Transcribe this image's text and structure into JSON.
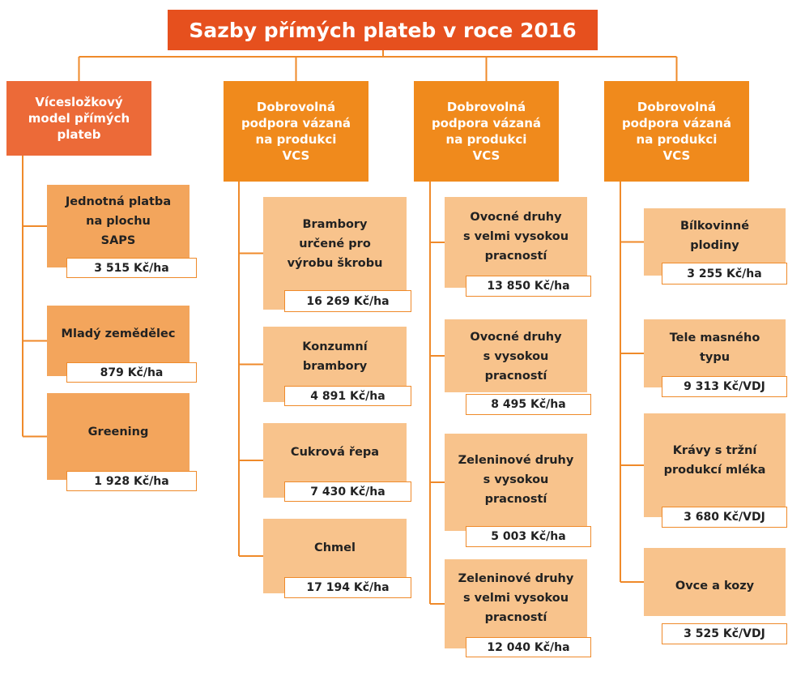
{
  "title": "Sazby přímých plateb v roce 2016",
  "columns": [
    {
      "header": [
        "Vícesložkový",
        "model přímých",
        "plateb"
      ],
      "items": [
        {
          "label": [
            "Jednotná platba",
            "na plochu",
            "SAPS"
          ],
          "value": "3 515 Kč/ha"
        },
        {
          "label": [
            "Mladý zemědělec"
          ],
          "value": "879 Kč/ha"
        },
        {
          "label": [
            "Greening"
          ],
          "value": "1 928 Kč/ha"
        }
      ]
    },
    {
      "header": [
        "Dobrovolná",
        "podpora vázaná",
        "na produkci",
        "VCS"
      ],
      "items": [
        {
          "label": [
            "Brambory",
            "určené pro",
            "výrobu škrobu"
          ],
          "value": "16 269 Kč/ha"
        },
        {
          "label": [
            "Konzumní",
            "brambory"
          ],
          "value": "4 891 Kč/ha"
        },
        {
          "label": [
            "Cukrová řepa"
          ],
          "value": "7 430 Kč/ha"
        },
        {
          "label": [
            "Chmel"
          ],
          "value": "17 194 Kč/ha"
        }
      ]
    },
    {
      "header": [
        "Dobrovolná",
        "podpora vázaná",
        "na produkci",
        "VCS"
      ],
      "items": [
        {
          "label": [
            "Ovocné druhy",
            "s velmi vysokou",
            "pracností"
          ],
          "value": "13 850 Kč/ha"
        },
        {
          "label": [
            "Ovocné druhy",
            "s vysokou",
            "pracností"
          ],
          "value": "8 495 Kč/ha"
        },
        {
          "label": [
            "Zeleninové druhy",
            "s vysokou",
            "pracností"
          ],
          "value": "5 003 Kč/ha"
        },
        {
          "label": [
            "Zeleninové druhy",
            "s velmi vysokou",
            "pracností"
          ],
          "value": "12 040 Kč/ha"
        }
      ]
    },
    {
      "header": [
        "Dobrovolná",
        "podpora vázaná",
        "na produkci",
        "VCS"
      ],
      "items": [
        {
          "label": [
            "Bílkovinné",
            "plodiny"
          ],
          "value": "3 255 Kč/ha"
        },
        {
          "label": [
            "Tele masného",
            "typu"
          ],
          "value": "9 313 Kč/VDJ"
        },
        {
          "label": [
            "Krávy s tržní",
            "produkcí mléka"
          ],
          "value": "3 680 Kč/VDJ"
        },
        {
          "label": [
            "Ovce a kozy"
          ],
          "value": "3 525 Kč/VDJ"
        }
      ]
    }
  ]
}
